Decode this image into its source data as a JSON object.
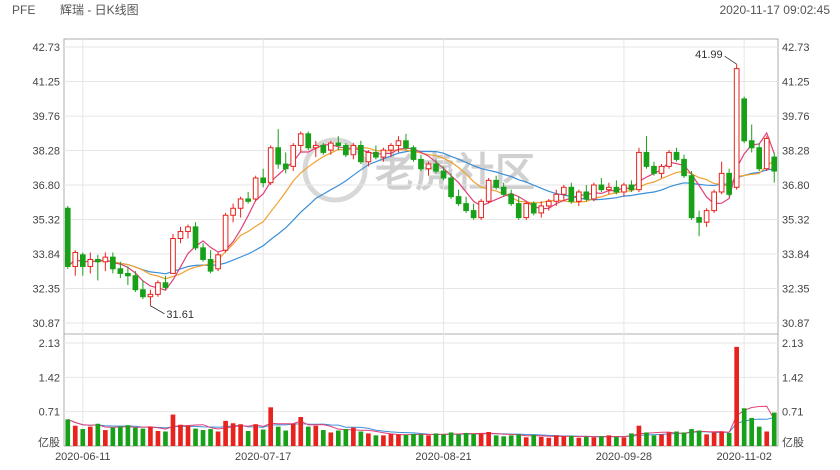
{
  "header": {
    "symbol": "PFE",
    "title": "辉瑞 - 日K线图",
    "timestamp": "2020-11-17 09:02:45"
  },
  "watermark": "老虎社区",
  "colors": {
    "up": "#e8231d",
    "down": "#18a018",
    "ma5": "#e0407a",
    "ma10": "#f0a030",
    "ma20": "#3c8fd8",
    "grid": "#e6e6e6",
    "axis": "#999999"
  },
  "chart_data": [
    {
      "type": "candlestick",
      "title": "",
      "yticks": [
        "42.73",
        "41.25",
        "39.76",
        "38.28",
        "36.80",
        "35.32",
        "33.84",
        "32.35",
        "30.87"
      ],
      "ylim": [
        30.87,
        42.73
      ],
      "xticks": [
        "2020-06-11",
        "2020-07-17",
        "2020-08-21",
        "2020-09-28",
        "2020-11-02"
      ],
      "annotations": [
        {
          "text": "41.99",
          "label": "high"
        },
        {
          "text": "31.61",
          "label": "low"
        }
      ],
      "candles": [
        [
          35.8,
          35.9,
          33.2,
          33.3
        ],
        [
          33.3,
          34.0,
          32.9,
          33.9
        ],
        [
          33.8,
          33.9,
          32.9,
          33.3
        ],
        [
          33.3,
          33.9,
          33.0,
          33.6
        ],
        [
          33.6,
          33.8,
          32.7,
          33.5
        ],
        [
          33.5,
          33.9,
          33.1,
          33.7
        ],
        [
          33.7,
          33.9,
          33.0,
          33.2
        ],
        [
          33.2,
          33.5,
          32.8,
          33.0
        ],
        [
          33.0,
          33.3,
          32.5,
          32.9
        ],
        [
          32.9,
          33.1,
          32.2,
          32.3
        ],
        [
          32.3,
          32.7,
          31.9,
          32.0
        ],
        [
          32.0,
          32.3,
          31.61,
          32.1
        ],
        [
          32.1,
          32.7,
          32.0,
          32.6
        ],
        [
          32.6,
          32.9,
          32.3,
          32.4
        ],
        [
          33.0,
          34.7,
          33.0,
          34.5
        ],
        [
          34.5,
          35.0,
          34.3,
          34.8
        ],
        [
          34.8,
          35.1,
          34.5,
          35.0
        ],
        [
          35.0,
          35.2,
          34.0,
          34.1
        ],
        [
          34.1,
          34.3,
          33.5,
          33.6
        ],
        [
          33.6,
          34.0,
          33.0,
          33.1
        ],
        [
          33.2,
          33.9,
          33.1,
          33.8
        ],
        [
          34.0,
          35.6,
          33.9,
          35.5
        ],
        [
          35.5,
          36.0,
          35.2,
          35.8
        ],
        [
          35.8,
          36.3,
          35.4,
          36.2
        ],
        [
          36.2,
          36.5,
          36.0,
          36.1
        ],
        [
          36.2,
          37.2,
          36.1,
          37.1
        ],
        [
          37.1,
          37.5,
          36.7,
          36.9
        ],
        [
          36.9,
          38.5,
          36.8,
          38.4
        ],
        [
          38.4,
          39.2,
          37.5,
          37.7
        ],
        [
          37.7,
          38.2,
          37.3,
          37.5
        ],
        [
          37.6,
          38.6,
          37.4,
          38.5
        ],
        [
          38.5,
          39.1,
          38.2,
          39.0
        ],
        [
          39.0,
          39.1,
          38.3,
          38.4
        ],
        [
          38.4,
          38.7,
          38.0,
          38.5
        ],
        [
          38.5,
          38.6,
          38.1,
          38.2
        ],
        [
          38.3,
          38.7,
          38.1,
          38.6
        ],
        [
          38.6,
          38.9,
          38.3,
          38.5
        ],
        [
          38.5,
          38.6,
          38.0,
          38.1
        ],
        [
          38.1,
          38.6,
          37.9,
          38.5
        ],
        [
          38.5,
          38.7,
          37.7,
          37.8
        ],
        [
          37.8,
          38.3,
          37.6,
          38.2
        ],
        [
          38.2,
          38.5,
          37.9,
          38.0
        ],
        [
          38.0,
          38.4,
          37.8,
          38.3
        ],
        [
          38.3,
          38.6,
          38.0,
          38.5
        ],
        [
          38.5,
          38.9,
          38.2,
          38.7
        ],
        [
          38.7,
          39.0,
          38.3,
          38.4
        ],
        [
          38.4,
          38.5,
          37.8,
          37.9
        ],
        [
          37.9,
          38.1,
          37.4,
          37.5
        ],
        [
          37.5,
          37.8,
          37.2,
          37.7
        ],
        [
          37.7,
          37.9,
          37.3,
          37.4
        ],
        [
          37.4,
          37.6,
          37.0,
          37.1
        ],
        [
          37.1,
          37.3,
          36.2,
          36.3
        ],
        [
          36.3,
          36.6,
          35.9,
          36.0
        ],
        [
          36.0,
          36.3,
          35.6,
          35.7
        ],
        [
          35.7,
          36.0,
          35.3,
          35.4
        ],
        [
          35.4,
          36.2,
          35.3,
          36.1
        ],
        [
          36.1,
          37.1,
          36.0,
          37.0
        ],
        [
          37.0,
          37.2,
          36.6,
          36.7
        ],
        [
          36.7,
          36.9,
          36.3,
          36.4
        ],
        [
          36.4,
          36.6,
          35.9,
          36.0
        ],
        [
          36.0,
          36.3,
          35.3,
          35.4
        ],
        [
          35.4,
          36.1,
          35.3,
          36.0
        ],
        [
          36.0,
          36.1,
          35.5,
          35.6
        ],
        [
          35.6,
          36.1,
          35.4,
          35.9
        ],
        [
          35.9,
          36.2,
          35.7,
          36.1
        ],
        [
          36.1,
          36.6,
          35.9,
          36.4
        ],
        [
          36.4,
          36.8,
          36.1,
          36.7
        ],
        [
          36.7,
          36.9,
          36.0,
          36.1
        ],
        [
          36.1,
          36.6,
          35.9,
          36.5
        ],
        [
          36.5,
          36.8,
          36.1,
          36.2
        ],
        [
          36.2,
          36.9,
          36.1,
          36.8
        ],
        [
          36.8,
          37.1,
          36.5,
          36.6
        ],
        [
          36.6,
          36.9,
          36.4,
          36.7
        ],
        [
          36.7,
          37.0,
          36.4,
          36.5
        ],
        [
          36.5,
          36.9,
          36.3,
          36.8
        ],
        [
          36.8,
          37.0,
          36.5,
          36.6
        ],
        [
          36.6,
          38.4,
          36.5,
          38.2
        ],
        [
          38.2,
          38.9,
          37.5,
          37.6
        ],
        [
          37.6,
          37.8,
          37.2,
          37.3
        ],
        [
          37.3,
          37.7,
          37.1,
          37.6
        ],
        [
          37.6,
          38.3,
          37.5,
          38.2
        ],
        [
          38.2,
          38.4,
          37.8,
          37.9
        ],
        [
          37.9,
          38.1,
          37.1,
          37.2
        ],
        [
          37.2,
          37.4,
          35.3,
          35.4
        ],
        [
          35.4,
          35.7,
          34.6,
          35.2
        ],
        [
          35.2,
          35.8,
          35.0,
          35.7
        ],
        [
          35.7,
          36.6,
          35.6,
          36.5
        ],
        [
          36.5,
          37.8,
          36.4,
          37.3
        ],
        [
          37.3,
          37.5,
          36.3,
          36.4
        ],
        [
          36.7,
          41.99,
          36.6,
          41.8
        ],
        [
          40.5,
          40.6,
          38.6,
          38.7
        ],
        [
          38.7,
          39.4,
          38.2,
          38.4
        ],
        [
          38.4,
          38.6,
          37.4,
          37.5
        ],
        [
          37.5,
          38.9,
          37.4,
          38.8
        ],
        [
          38.0,
          38.2,
          36.9,
          37.4
        ]
      ]
    },
    {
      "type": "bar",
      "title": "",
      "yticks": [
        "2.13",
        "1.42",
        "0.71"
      ],
      "ylim": [
        0,
        2.13
      ],
      "unit": "亿股",
      "volumes": [
        0.55,
        0.42,
        0.35,
        0.4,
        0.46,
        0.33,
        0.38,
        0.4,
        0.43,
        0.38,
        0.36,
        0.4,
        0.31,
        0.3,
        0.65,
        0.44,
        0.42,
        0.36,
        0.33,
        0.35,
        0.3,
        0.52,
        0.47,
        0.45,
        0.31,
        0.45,
        0.34,
        0.8,
        0.4,
        0.32,
        0.46,
        0.6,
        0.4,
        0.42,
        0.33,
        0.28,
        0.32,
        0.35,
        0.38,
        0.3,
        0.26,
        0.22,
        0.22,
        0.25,
        0.24,
        0.23,
        0.25,
        0.24,
        0.22,
        0.26,
        0.24,
        0.28,
        0.24,
        0.27,
        0.25,
        0.26,
        0.29,
        0.22,
        0.2,
        0.22,
        0.24,
        0.18,
        0.23,
        0.19,
        0.17,
        0.22,
        0.2,
        0.21,
        0.17,
        0.19,
        0.18,
        0.2,
        0.22,
        0.19,
        0.18,
        0.26,
        0.42,
        0.28,
        0.22,
        0.24,
        0.28,
        0.3,
        0.28,
        0.35,
        0.32,
        0.24,
        0.28,
        0.3,
        0.27,
        2.05,
        0.78,
        0.58,
        0.4,
        0.3,
        0.69
      ]
    }
  ]
}
